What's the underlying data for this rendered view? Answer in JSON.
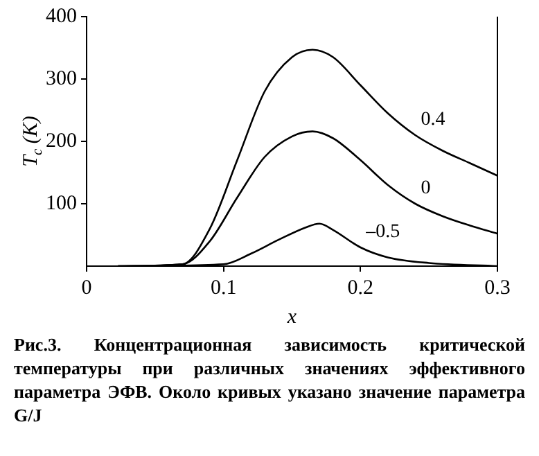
{
  "chart_data": {
    "type": "line",
    "xlabel": "x",
    "ylabel": "T$_{c}$ (K)",
    "xlim": [
      0,
      0.3
    ],
    "ylim": [
      0,
      400
    ],
    "xticks": [
      0,
      0.1,
      0.2,
      0.3
    ],
    "yticks": [
      100,
      200,
      300,
      400
    ],
    "grid": false,
    "legend": false,
    "marker": "none",
    "line_style": "solid",
    "series": [
      {
        "name": "0.4",
        "color": "#000000",
        "x": [
          0.023,
          0.07,
          0.09,
          0.11,
          0.13,
          0.15,
          0.165,
          0.18,
          0.2,
          0.22,
          0.24,
          0.26,
          0.28,
          0.3
        ],
        "values": [
          0,
          3,
          60,
          170,
          280,
          335,
          347,
          335,
          290,
          245,
          210,
          185,
          165,
          145
        ]
      },
      {
        "name": "0",
        "color": "#000000",
        "x": [
          0.023,
          0.07,
          0.09,
          0.11,
          0.13,
          0.15,
          0.165,
          0.18,
          0.2,
          0.22,
          0.24,
          0.26,
          0.28,
          0.3
        ],
        "values": [
          0,
          3,
          40,
          110,
          175,
          208,
          216,
          205,
          170,
          130,
          100,
          80,
          65,
          52
        ]
      },
      {
        "name": "–0.5",
        "color": "#000000",
        "x": [
          0.023,
          0.1,
          0.12,
          0.14,
          0.16,
          0.17,
          0.18,
          0.2,
          0.22,
          0.25,
          0.3
        ],
        "values": [
          0,
          3,
          20,
          42,
          62,
          68,
          58,
          30,
          14,
          5,
          0
        ]
      }
    ],
    "annotations": [
      "Рис.3. Концентрационная зависимость критической температуры при различных значениях эффективного параметра ЭФВ. Около кривых указано значение параметра G/J"
    ]
  }
}
